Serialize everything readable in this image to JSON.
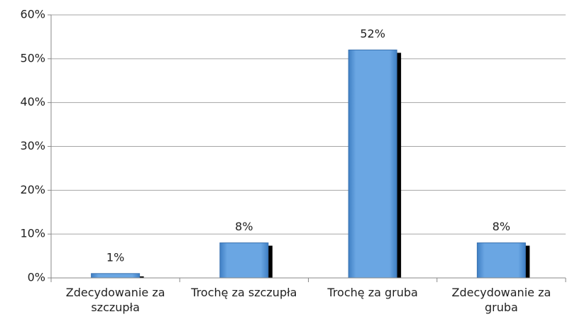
{
  "chart_data": {
    "type": "bar",
    "categories": [
      "Zdecydowanie za szczupła",
      "Trochę za szczupła",
      "Trochę za gruba",
      "Zdecydowanie za gruba"
    ],
    "values": [
      1,
      8,
      52,
      8
    ],
    "value_labels": [
      "1%",
      "8%",
      "52%",
      "8%"
    ],
    "color": "#6aa6e3",
    "ylim": [
      0,
      60
    ],
    "yticks": [
      {
        "value": 0,
        "label": "0%"
      },
      {
        "value": 10,
        "label": "10%"
      },
      {
        "value": 20,
        "label": "20%"
      },
      {
        "value": 30,
        "label": "30%"
      },
      {
        "value": 40,
        "label": "40%"
      },
      {
        "value": 50,
        "label": "50%"
      },
      {
        "value": 60,
        "label": "60%"
      }
    ],
    "grid": true
  }
}
